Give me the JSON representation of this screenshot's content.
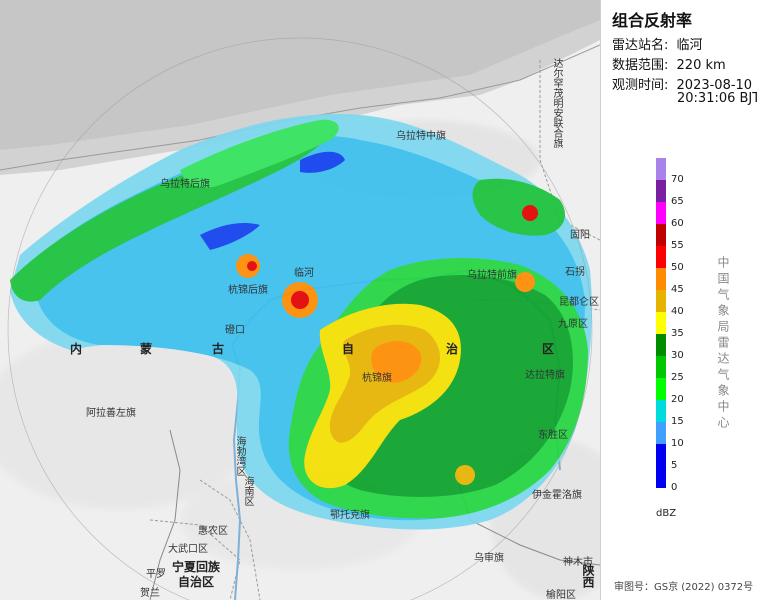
{
  "panel": {
    "title": "组合反射率",
    "station_label": "雷达站名:",
    "station_value": "临河",
    "range_label": "数据范围:",
    "range_value": "220 km",
    "time_label": "观测时间:",
    "time_value_date": "2023-08-10",
    "time_value_time": "20:31:06 BJT",
    "vertical_text": "中国气象局雷达气象中心",
    "unit": "dBZ"
  },
  "colorbar": [
    {
      "value": "70",
      "color": "#a982ea"
    },
    {
      "value": "65",
      "color": "#7a1fa2"
    },
    {
      "value": "60",
      "color": "#ff00ff"
    },
    {
      "value": "55",
      "color": "#c00000"
    },
    {
      "value": "50",
      "color": "#ff0000"
    },
    {
      "value": "45",
      "color": "#ff8c00"
    },
    {
      "value": "40",
      "color": "#e6b400"
    },
    {
      "value": "35",
      "color": "#ffff00"
    },
    {
      "value": "30",
      "color": "#008c00"
    },
    {
      "value": "25",
      "color": "#00c800"
    },
    {
      "value": "20",
      "color": "#00ff00"
    },
    {
      "value": "15",
      "color": "#00dcdc"
    },
    {
      "value": "10",
      "color": "#3fa0ff"
    },
    {
      "value": "5",
      "color": "#0000f0"
    },
    {
      "value": "0",
      "color": "#0000f0"
    }
  ],
  "map_labels": {
    "damaoqi": "达尔罕茂明安联合旗",
    "wulatezhongqi": "乌拉特中旗",
    "wulatehouqi": "乌拉特后旗",
    "guyang": "固阳",
    "shiguai": "石拐",
    "wulateqianqi": "乌拉特前旗",
    "linhe": "临河",
    "hangjinhouqi": "杭锦后旗",
    "dengkou": "磴口",
    "kundulun": "昆都仑区",
    "jiuyuan": "九原区",
    "nei": "内",
    "meng": "蒙",
    "gu": "古",
    "zi": "自",
    "zhi": "治",
    "qu": "区",
    "dalateqi": "达拉特旗",
    "alashanzuoqi": "阿拉善左旗",
    "hangjinqi": "杭锦旗",
    "dongsheng": "东胜区",
    "wuhaibowan": "海勃湾区",
    "hainan": "海南区",
    "yijinhuoluo": "伊金霍洛旗",
    "huinong": "惠农区",
    "etuokeqi": "鄂托克旗",
    "dawukou": "大武口区",
    "pingluo": "平罗",
    "helan": "贺兰",
    "ningxia1": "宁夏回族",
    "ningxia2": "自治区",
    "wushenqi": "乌审旗",
    "shenmu": "神木市",
    "yulin": "榆阳区",
    "shaanxi": "陕西"
  },
  "footer": "审图号：GS京 (2022) 0372号"
}
